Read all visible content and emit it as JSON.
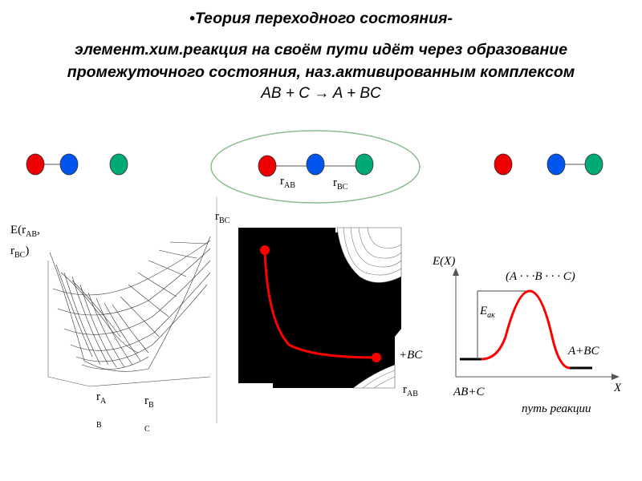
{
  "title": {
    "line1": "•Теория переходного состояния-",
    "line2": "элемент.хим.реакция на своём пути идёт через образование",
    "line3": "промежуточного состояния, наз.активированным комплексом"
  },
  "equation": "AB + C → A + BC",
  "colors": {
    "atom_a": "#ee0000",
    "atom_b": "#0055ee",
    "atom_c": "#00aa77",
    "path": "#ff0000",
    "ellipse_border": "#8fbc8f"
  },
  "molecules": {
    "center_labels": {
      "r_ab": "r",
      "r_ab_sub": "AB",
      "r_bc": "r",
      "r_bc_sub": "BC"
    }
  },
  "surface_plot": {
    "axis_label_e": "E(r",
    "axis_label_e_sub": "AB",
    "axis_label_e_tail": ",",
    "axis_label_e2": "r",
    "axis_label_e2_sub": "BC",
    "axis_label_e2_tail": ")",
    "r_ab": "r",
    "r_ab_sub": "A",
    "r_ab_sub2": "B",
    "r_bc": "r",
    "r_bc_sub": "B",
    "r_bc_sub2": "C"
  },
  "contour_plot": {
    "y_label": "r",
    "y_label_sub": "BC",
    "x_label": "r",
    "x_label_sub": "AB",
    "product_label": "+BC"
  },
  "energy_diagram": {
    "y_axis": "E(X)",
    "x_axis": "X",
    "complex_label": "(A · · ·B · · · C)",
    "activation_label": "E",
    "activation_sub": "ак",
    "reactants": "AB+C",
    "products": "A+BC",
    "path_label": "путь реакции"
  }
}
